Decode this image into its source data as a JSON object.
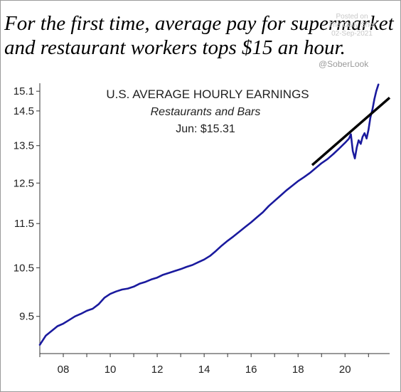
{
  "headline": {
    "line1": "For the first time, average pay for supermarket",
    "line2": "and restaurant workers tops $15 an hour."
  },
  "watermark": {
    "line1": "Posted on",
    "line2": "The Daily Shot",
    "line3": "02-Sep-2021"
  },
  "handle": "@SoberLook",
  "colors": {
    "series": "#1a1a9e",
    "trend": "#000000",
    "axis": "#333333"
  },
  "chart_data": {
    "type": "line",
    "title": "U.S. AVERAGE HOURLY EARNINGS",
    "subtitle": "Restaurants and Bars",
    "annotation": "Jun: $15.31",
    "xlabel": "",
    "ylabel": "",
    "xlim": [
      2007.0,
      2021.9
    ],
    "ylim": [
      8.8,
      15.35
    ],
    "y_scale": "log",
    "x_tick_labels": [
      {
        "x": 2008,
        "label": "08"
      },
      {
        "x": 2010,
        "label": "10"
      },
      {
        "x": 2012,
        "label": "12"
      },
      {
        "x": 2014,
        "label": "14"
      },
      {
        "x": 2016,
        "label": "16"
      },
      {
        "x": 2018,
        "label": "18"
      },
      {
        "x": 2020,
        "label": "20"
      }
    ],
    "y_ticks": [
      9.5,
      10.5,
      11.5,
      12.5,
      13.5,
      14.5,
      15.1
    ],
    "y_tick_labels": [
      "9.5",
      "10.5",
      "11.5",
      "12.5",
      "13.5",
      "14.5",
      "15.1"
    ],
    "series": [
      {
        "x": [
          2007.0,
          2007.25,
          2007.5,
          2007.75,
          2008.0,
          2008.25,
          2008.5,
          2008.75,
          2009.0,
          2009.25,
          2009.5,
          2009.75,
          2010.0,
          2010.25,
          2010.5,
          2010.75,
          2011.0,
          2011.25,
          2011.5,
          2011.75,
          2012.0,
          2012.25,
          2012.5,
          2012.75,
          2013.0,
          2013.25,
          2013.5,
          2013.75,
          2014.0,
          2014.25,
          2014.5,
          2014.75,
          2015.0,
          2015.25,
          2015.5,
          2015.75,
          2016.0,
          2016.25,
          2016.5,
          2016.75,
          2017.0,
          2017.25,
          2017.5,
          2017.75,
          2018.0,
          2018.25,
          2018.5,
          2018.75,
          2019.0,
          2019.25,
          2019.5,
          2019.75,
          2020.0,
          2020.17,
          2020.25,
          2020.33,
          2020.42,
          2020.5,
          2020.58,
          2020.67,
          2020.75,
          2020.83,
          2020.92,
          2021.0,
          2021.08,
          2021.17,
          2021.25,
          2021.33,
          2021.42
        ],
        "values": [
          8.96,
          9.13,
          9.22,
          9.31,
          9.36,
          9.43,
          9.5,
          9.55,
          9.61,
          9.65,
          9.74,
          9.87,
          9.95,
          10.0,
          10.04,
          10.06,
          10.1,
          10.16,
          10.2,
          10.25,
          10.29,
          10.35,
          10.39,
          10.43,
          10.47,
          10.52,
          10.56,
          10.62,
          10.68,
          10.76,
          10.87,
          10.99,
          11.1,
          11.2,
          11.31,
          11.42,
          11.53,
          11.65,
          11.77,
          11.92,
          12.05,
          12.18,
          12.31,
          12.43,
          12.55,
          12.65,
          12.76,
          12.89,
          13.02,
          13.13,
          13.27,
          13.42,
          13.58,
          13.7,
          13.82,
          13.35,
          13.15,
          13.45,
          13.65,
          13.55,
          13.75,
          13.85,
          13.7,
          13.95,
          14.3,
          14.55,
          14.85,
          15.1,
          15.31
        ]
      }
    ],
    "trend_line": {
      "x": [
        2018.6,
        2021.9
      ],
      "values": [
        12.97,
        14.9
      ]
    }
  }
}
